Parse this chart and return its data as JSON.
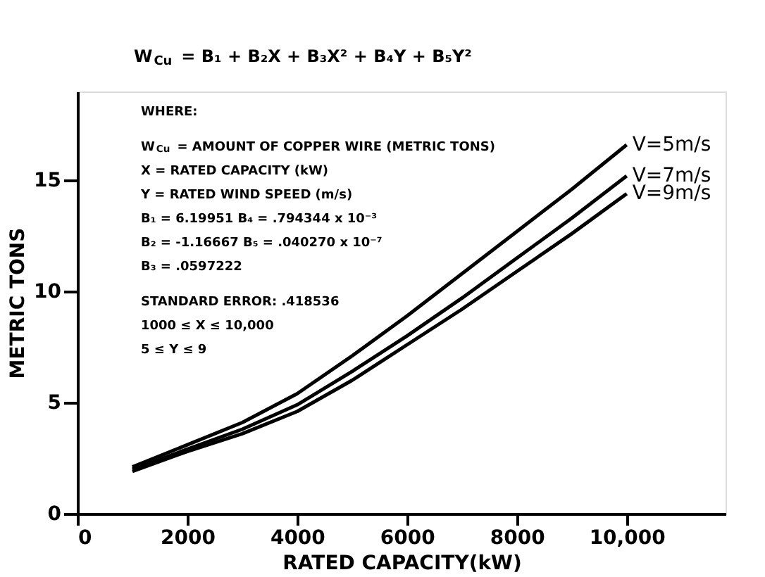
{
  "chart_data": {
    "type": "line",
    "title": "W$_{Cu}$ = B₁ + B₂X + B₃X² + B₄Y + B₅Y²",
    "xlabel": "RATED CAPACITY(kW)",
    "ylabel": "METRIC TONS",
    "x": [
      1000,
      2000,
      3000,
      4000,
      5000,
      6000,
      7000,
      8000,
      9000,
      10000
    ],
    "series": [
      {
        "name": "V=5m/s",
        "color": "#000000",
        "values": [
          2.1,
          3.1,
          4.1,
          5.4,
          7.1,
          8.9,
          10.8,
          12.7,
          14.6,
          16.6
        ]
      },
      {
        "name": "V=7m/s",
        "color": "#000000",
        "values": [
          2.0,
          2.9,
          3.8,
          4.9,
          6.4,
          8.0,
          9.7,
          11.5,
          13.3,
          15.2
        ]
      },
      {
        "name": "V=9m/s",
        "color": "#000000",
        "values": [
          1.9,
          2.8,
          3.6,
          4.6,
          6.0,
          7.6,
          9.2,
          10.9,
          12.6,
          14.4
        ]
      }
    ],
    "annotations": [
      "WHERE:",
      "W$_{Cu}$ = AMOUNT OF COPPER WIRE (METRIC TONS)",
      "X = RATED CAPACITY (kW)",
      "Y = RATED WIND SPEED (m/s)",
      "B₁ = 6.19951   B₄ = .794344 x 10⁻³",
      "B₂ = -1.16667   B₅ = .040270 x 10⁻⁷",
      "B₃ = .0597222",
      "STANDARD ERROR: .418536",
      "1000 ≤ X ≤ 10,000",
      "5 ≤ Y ≤ 9"
    ],
    "xlim": [
      0,
      11800
    ],
    "ylim": [
      0,
      19
    ],
    "xticks": [
      0,
      2000,
      4000,
      6000,
      8000,
      {
        "value": 10000,
        "label": "10,000"
      }
    ],
    "yticks": [
      0,
      5,
      10,
      15
    ],
    "grid": false,
    "marker": "none",
    "line_style": "solid"
  }
}
